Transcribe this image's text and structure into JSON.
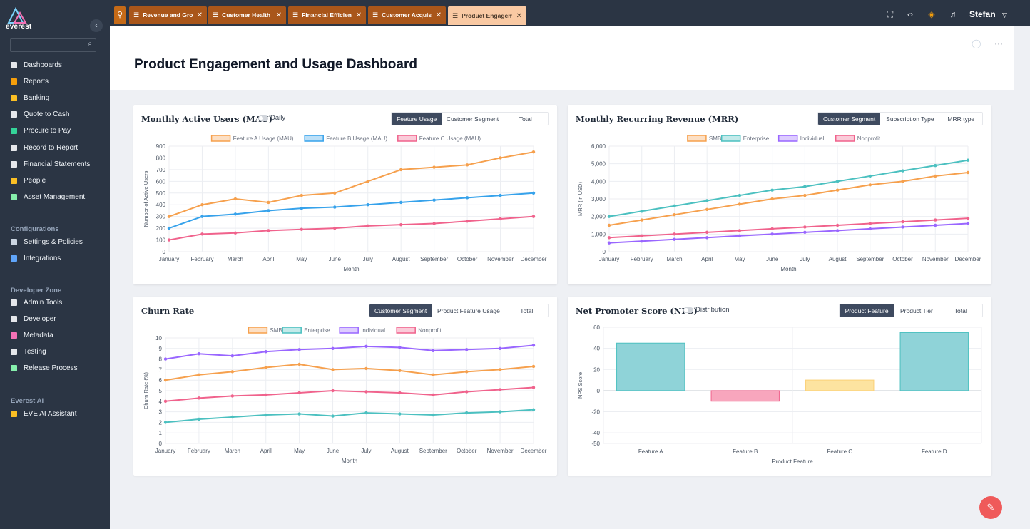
{
  "app": {
    "brand": "everest",
    "user": "Stefan"
  },
  "tabs": [
    {
      "label": "Revenue and Grow",
      "active": false
    },
    {
      "label": "Customer Health a",
      "active": false
    },
    {
      "label": "Financial Efficienc",
      "active": false
    },
    {
      "label": "Customer Acquisit",
      "active": false
    },
    {
      "label": "Product Engagem",
      "active": true
    }
  ],
  "sidebar": {
    "items": [
      {
        "label": "Dashboards",
        "color": "#e5e7eb"
      },
      {
        "label": "Reports",
        "color": "#f59e0b"
      },
      {
        "label": "Banking",
        "color": "#fbbf24"
      },
      {
        "label": "Quote to Cash",
        "color": "#e5e7eb"
      },
      {
        "label": "Procure to Pay",
        "color": "#34d399"
      },
      {
        "label": "Record to Report",
        "color": "#e5e7eb"
      },
      {
        "label": "Financial Statements",
        "color": "#e5e7eb"
      },
      {
        "label": "People",
        "color": "#fbbf24"
      },
      {
        "label": "Asset Management",
        "color": "#86efac"
      }
    ],
    "config_title": "Configurations",
    "config_items": [
      {
        "label": "Settings & Policies",
        "color": "#cbd5e1"
      },
      {
        "label": "Integrations",
        "color": "#60a5fa"
      }
    ],
    "dev_title": "Developer Zone",
    "dev_items": [
      {
        "label": "Admin Tools",
        "color": "#e5e7eb"
      },
      {
        "label": "Developer",
        "color": "#e5e7eb"
      },
      {
        "label": "Metadata",
        "color": "#f472b6"
      },
      {
        "label": "Testing",
        "color": "#e5e7eb"
      },
      {
        "label": "Release Process",
        "color": "#86efac"
      }
    ],
    "ai_title": "Everest AI",
    "ai_items": [
      {
        "label": "EVE AI Assistant",
        "color": "#fbbf24"
      }
    ]
  },
  "page": {
    "title": "Product Engagement and Usage Dashboard"
  },
  "cards": {
    "mau": {
      "title": "Monthly Active Users (MAU)",
      "toggle_label": "Daily",
      "segments": [
        "Feature Usage",
        "Customer Segment",
        "Total"
      ],
      "active_segment": 0
    },
    "mrr": {
      "title": "Monthly Recurring Revenue (MRR)",
      "segments": [
        "Customer Segment",
        "Subscription Type",
        "MRR type"
      ],
      "active_segment": 0
    },
    "churn": {
      "title": "Churn Rate",
      "segments": [
        "Customer Segment",
        "Product Feature Usage",
        "Total"
      ],
      "active_segment": 0
    },
    "nps": {
      "title": "Net Promoter Score (NPS)",
      "toggle_label": "Distribution",
      "segments": [
        "Product Feature",
        "Product Tier",
        "Total"
      ],
      "active_segment": 0
    }
  },
  "chart_data": [
    {
      "id": "mau",
      "type": "line",
      "categories": [
        "January",
        "February",
        "March",
        "April",
        "May",
        "June",
        "July",
        "August",
        "September",
        "October",
        "November",
        "December"
      ],
      "series": [
        {
          "name": "Feature A Usage (MAU)",
          "color": "#f6a04d",
          "values": [
            300,
            400,
            450,
            420,
            480,
            500,
            600,
            700,
            720,
            740,
            800,
            850
          ]
        },
        {
          "name": "Feature B Usage (MAU)",
          "color": "#36a2eb",
          "values": [
            200,
            300,
            320,
            350,
            370,
            380,
            400,
            420,
            440,
            460,
            480,
            500
          ]
        },
        {
          "name": "Feature C Usage (MAU)",
          "color": "#f0628c",
          "values": [
            100,
            150,
            160,
            180,
            190,
            200,
            220,
            230,
            240,
            260,
            280,
            300
          ]
        }
      ],
      "xlabel": "Month",
      "ylabel": "Number of Active Users",
      "ylim": [
        0,
        900
      ],
      "ystep": 100,
      "grid": true,
      "legend": "top"
    },
    {
      "id": "mrr",
      "type": "line",
      "categories": [
        "January",
        "February",
        "March",
        "April",
        "May",
        "June",
        "July",
        "August",
        "September",
        "October",
        "November",
        "December"
      ],
      "series": [
        {
          "name": "SMB",
          "color": "#f6a04d",
          "values": [
            1500,
            1800,
            2100,
            2400,
            2700,
            3000,
            3200,
            3500,
            3800,
            4000,
            4300,
            4500
          ]
        },
        {
          "name": "Enterprise",
          "color": "#4bc0c0",
          "values": [
            2000,
            2300,
            2600,
            2900,
            3200,
            3500,
            3700,
            4000,
            4300,
            4600,
            4900,
            5200
          ]
        },
        {
          "name": "Individual",
          "color": "#9966ff",
          "values": [
            500,
            600,
            700,
            800,
            900,
            1000,
            1100,
            1200,
            1300,
            1400,
            1500,
            1600
          ]
        },
        {
          "name": "Nonprofit",
          "color": "#f0628c",
          "values": [
            800,
            900,
            1000,
            1100,
            1200,
            1300,
            1400,
            1500,
            1600,
            1700,
            1800,
            1900
          ]
        }
      ],
      "xlabel": "Month",
      "ylabel": "MRR (in USD)",
      "ylim": [
        0,
        6000
      ],
      "ystep": 1000,
      "grid": true,
      "legend": "top"
    },
    {
      "id": "churn",
      "type": "line",
      "categories": [
        "January",
        "February",
        "March",
        "April",
        "May",
        "June",
        "July",
        "August",
        "September",
        "October",
        "November",
        "December"
      ],
      "series": [
        {
          "name": "SMB",
          "color": "#f6a04d",
          "values": [
            6,
            6.5,
            6.8,
            7.2,
            7.5,
            7.0,
            7.1,
            6.9,
            6.5,
            6.8,
            7.0,
            7.3
          ]
        },
        {
          "name": "Enterprise",
          "color": "#4bc0c0",
          "values": [
            2,
            2.3,
            2.5,
            2.7,
            2.8,
            2.6,
            2.9,
            2.8,
            2.7,
            2.9,
            3.0,
            3.2
          ]
        },
        {
          "name": "Individual",
          "color": "#9966ff",
          "values": [
            8,
            8.5,
            8.3,
            8.7,
            8.9,
            9.0,
            9.2,
            9.1,
            8.8,
            8.9,
            9.0,
            9.3
          ]
        },
        {
          "name": "Nonprofit",
          "color": "#f0628c",
          "values": [
            4,
            4.3,
            4.5,
            4.6,
            4.8,
            5.0,
            4.9,
            4.8,
            4.6,
            4.9,
            5.1,
            5.3
          ]
        }
      ],
      "xlabel": "Month",
      "ylabel": "Churn Rate (%)",
      "ylim": [
        0,
        10
      ],
      "ystep": 1,
      "grid": true,
      "legend": "top"
    },
    {
      "id": "nps",
      "type": "bar",
      "categories": [
        "Feature A",
        "Feature B",
        "Feature C",
        "Feature D"
      ],
      "values": [
        45,
        -10,
        10,
        55
      ],
      "colors": [
        "#8fd3d8",
        "#f8a6bd",
        "#fde3a0",
        "#8fd3d8"
      ],
      "borderColors": [
        "#4bc0c0",
        "#f0628c",
        "#fbd076",
        "#4bc0c0"
      ],
      "xlabel": "Product Feature",
      "ylabel": "NPS Score",
      "yticks": [
        60,
        40,
        20,
        0,
        -20,
        -40,
        -50
      ],
      "ylim": [
        -50,
        60
      ],
      "grid": true
    }
  ]
}
